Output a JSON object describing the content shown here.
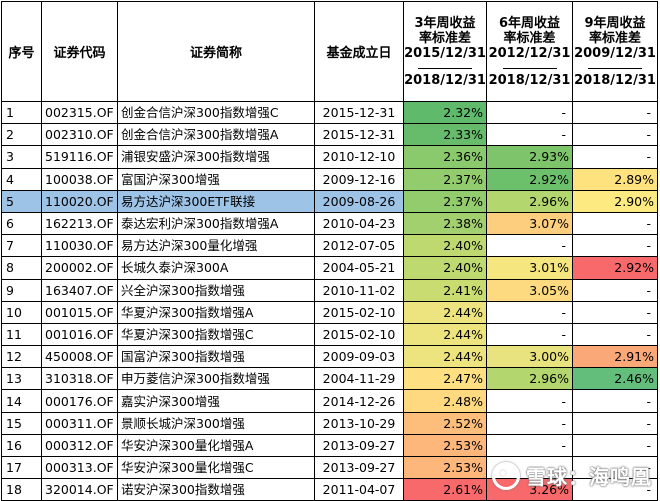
{
  "headers": {
    "idx": "序号",
    "code": "证券代码",
    "name": "证券简称",
    "date": "基金成立日",
    "col3": {
      "l1": "3年周收益",
      "l2": "率标准差",
      "l3": "2015/12/31",
      "l4": "2018/12/31"
    },
    "col6": {
      "l1": "6年周收益",
      "l2": "率标准差",
      "l3": "2012/12/31",
      "l4": "2018/12/31"
    },
    "col9": {
      "l1": "9年周收益",
      "l2": "率标准差",
      "l3": "2009/12/31",
      "l4": "2018/12/31"
    }
  },
  "rows": [
    {
      "idx": "1",
      "code": "002315.OF",
      "name": "创金合信沪深300指数增强C",
      "date": "2015-12-31",
      "v3": "2.32%",
      "v6": "-",
      "v9": "-",
      "c3": "#5fba6b",
      "c6": "#ffffff",
      "c9": "#ffffff"
    },
    {
      "idx": "2",
      "code": "002310.OF",
      "name": "创金合信沪深300指数增强A",
      "date": "2015-12-31",
      "v3": "2.33%",
      "v6": "-",
      "v9": "-",
      "c3": "#66bc6a",
      "c6": "#ffffff",
      "c9": "#ffffff"
    },
    {
      "idx": "3",
      "code": "519116.OF",
      "name": "浦银安盛沪深300指数增强",
      "date": "2010-12-10",
      "v3": "2.36%",
      "v6": "2.93%",
      "v9": "-",
      "c3": "#8ac96c",
      "c6": "#7dc46b",
      "c9": "#ffffff"
    },
    {
      "idx": "4",
      "code": "100038.OF",
      "name": "富国沪深300增强",
      "date": "2009-12-16",
      "v3": "2.37%",
      "v6": "2.92%",
      "v9": "2.89%",
      "c3": "#93cc6d",
      "c6": "#6cbf6b",
      "c9": "#fde27e"
    },
    {
      "idx": "5",
      "code": "110020.OF",
      "name": "易方达沪深300ETF联接",
      "date": "2009-08-26",
      "v3": "2.37%",
      "v6": "2.96%",
      "v9": "2.90%",
      "c3": "#93cc6d",
      "c6": "#b4d66f",
      "c9": "#fdeb82"
    },
    {
      "idx": "6",
      "code": "162213.OF",
      "name": "泰达宏利沪深300指数增强A",
      "date": "2010-04-23",
      "v3": "2.38%",
      "v6": "3.07%",
      "v9": "-",
      "c3": "#a3d06e",
      "c6": "#fdce7d",
      "c9": "#ffffff"
    },
    {
      "idx": "7",
      "code": "110030.OF",
      "name": "易方达沪深300量化增强",
      "date": "2012-07-05",
      "v3": "2.40%",
      "v6": "-",
      "v9": "-",
      "c3": "#bdd970",
      "c6": "#ffffff",
      "c9": "#ffffff"
    },
    {
      "idx": "8",
      "code": "200002.OF",
      "name": "长城久泰沪深300A",
      "date": "2004-05-21",
      "v3": "2.40%",
      "v6": "3.01%",
      "v9": "2.92%",
      "c3": "#bdd970",
      "c6": "#f5e67f",
      "c9": "#f8696b"
    },
    {
      "idx": "9",
      "code": "163407.OF",
      "name": "兴全沪深300指数增强",
      "date": "2010-11-02",
      "v3": "2.41%",
      "v6": "3.05%",
      "v9": "-",
      "c3": "#c9dc72",
      "c6": "#fdda80",
      "c9": "#ffffff"
    },
    {
      "idx": "10",
      "code": "001015.OF",
      "name": "华夏沪深300指数增强A",
      "date": "2015-02-10",
      "v3": "2.44%",
      "v6": "-",
      "v9": "-",
      "c3": "#ede480",
      "c6": "#ffffff",
      "c9": "#ffffff"
    },
    {
      "idx": "11",
      "code": "001016.OF",
      "name": "华夏沪深300指数增强C",
      "date": "2015-02-10",
      "v3": "2.44%",
      "v6": "-",
      "v9": "-",
      "c3": "#ede480",
      "c6": "#ffffff",
      "c9": "#ffffff"
    },
    {
      "idx": "12",
      "code": "450008.OF",
      "name": "国富沪深300指数增强",
      "date": "2009-09-03",
      "v3": "2.44%",
      "v6": "3.00%",
      "v9": "2.91%",
      "c3": "#ede480",
      "c6": "#e9e37f",
      "c9": "#fba878"
    },
    {
      "idx": "13",
      "code": "310318.OF",
      "name": "申万菱信沪深300指数增强",
      "date": "2004-11-29",
      "v3": "2.47%",
      "v6": "2.96%",
      "v9": "2.46%",
      "c3": "#fee082",
      "c6": "#b4d66f",
      "c9": "#63be7b"
    },
    {
      "idx": "14",
      "code": "000176.OF",
      "name": "嘉实沪深300增强",
      "date": "2014-12-26",
      "v3": "2.48%",
      "v6": "-",
      "v9": "-",
      "c3": "#fed980",
      "c6": "#ffffff",
      "c9": "#ffffff"
    },
    {
      "idx": "15",
      "code": "000311.OF",
      "name": "景顺长城沪深300增强",
      "date": "2013-10-29",
      "v3": "2.52%",
      "v6": "-",
      "v9": "-",
      "c3": "#fdbe7c",
      "c6": "#ffffff",
      "c9": "#ffffff"
    },
    {
      "idx": "16",
      "code": "000312.OF",
      "name": "华安沪深300量化增强A",
      "date": "2013-09-27",
      "v3": "2.53%",
      "v6": "-",
      "v9": "-",
      "c3": "#fdb77b",
      "c6": "#ffffff",
      "c9": "#ffffff"
    },
    {
      "idx": "17",
      "code": "000313.OF",
      "name": "华安沪深300量化增强C",
      "date": "2013-09-27",
      "v3": "2.53%",
      "v6": "-",
      "v9": "-",
      "c3": "#fdb77b",
      "c6": "#ffffff",
      "c9": "#ffffff"
    },
    {
      "idx": "18",
      "code": "320014.OF",
      "name": "诺安沪深300指数增强",
      "date": "2011-04-07",
      "v3": "2.61%",
      "v6": "3.26%",
      "v9": "-",
      "c3": "#f8696b",
      "c6": "#f8696b",
      "c9": "#ffffff"
    }
  ],
  "highlight_row": "5",
  "highlight_color": "#9dc3e6",
  "watermark": {
    "text": "雪球：海鸣凰",
    "icon": "snowball-logo-icon"
  }
}
